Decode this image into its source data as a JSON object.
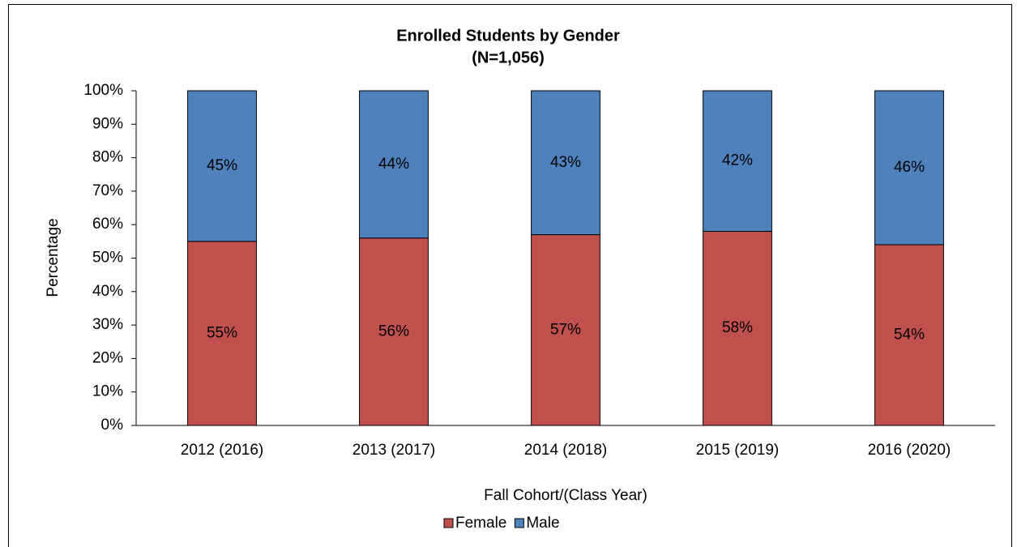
{
  "chart_data": {
    "type": "stacked_bar",
    "title": "Enrolled Students by Gender",
    "subtitle": "(N=1,056)",
    "y_label": "Percentage",
    "x_label": "Fall Cohort/(Class Year)",
    "categories": [
      "2012 (2016)",
      "2013 (2017)",
      "2014 (2018)",
      "2015 (2019)",
      "2016 (2020)"
    ],
    "series": [
      {
        "name": "Female",
        "color": "#c0504d",
        "values": [
          55,
          56,
          57,
          58,
          54
        ],
        "value_labels": [
          "55%",
          "56%",
          "57%",
          "58%",
          "54%"
        ]
      },
      {
        "name": "Male",
        "color": "#4f81bd",
        "values": [
          45,
          44,
          43,
          42,
          46
        ],
        "value_labels": [
          "45%",
          "44%",
          "43%",
          "42%",
          "46%"
        ]
      }
    ],
    "ylim": [
      0,
      100
    ],
    "yticks": [
      {
        "value": 0,
        "label": "0%"
      },
      {
        "value": 10,
        "label": "10%"
      },
      {
        "value": 20,
        "label": "20%"
      },
      {
        "value": 30,
        "label": "30%"
      },
      {
        "value": 40,
        "label": "40%"
      },
      {
        "value": 50,
        "label": "50%"
      },
      {
        "value": 60,
        "label": "60%"
      },
      {
        "value": 70,
        "label": "70%"
      },
      {
        "value": 80,
        "label": "80%"
      },
      {
        "value": 90,
        "label": "90%"
      },
      {
        "value": 100,
        "label": "100%"
      }
    ],
    "grid": false,
    "legend": "bottom"
  }
}
